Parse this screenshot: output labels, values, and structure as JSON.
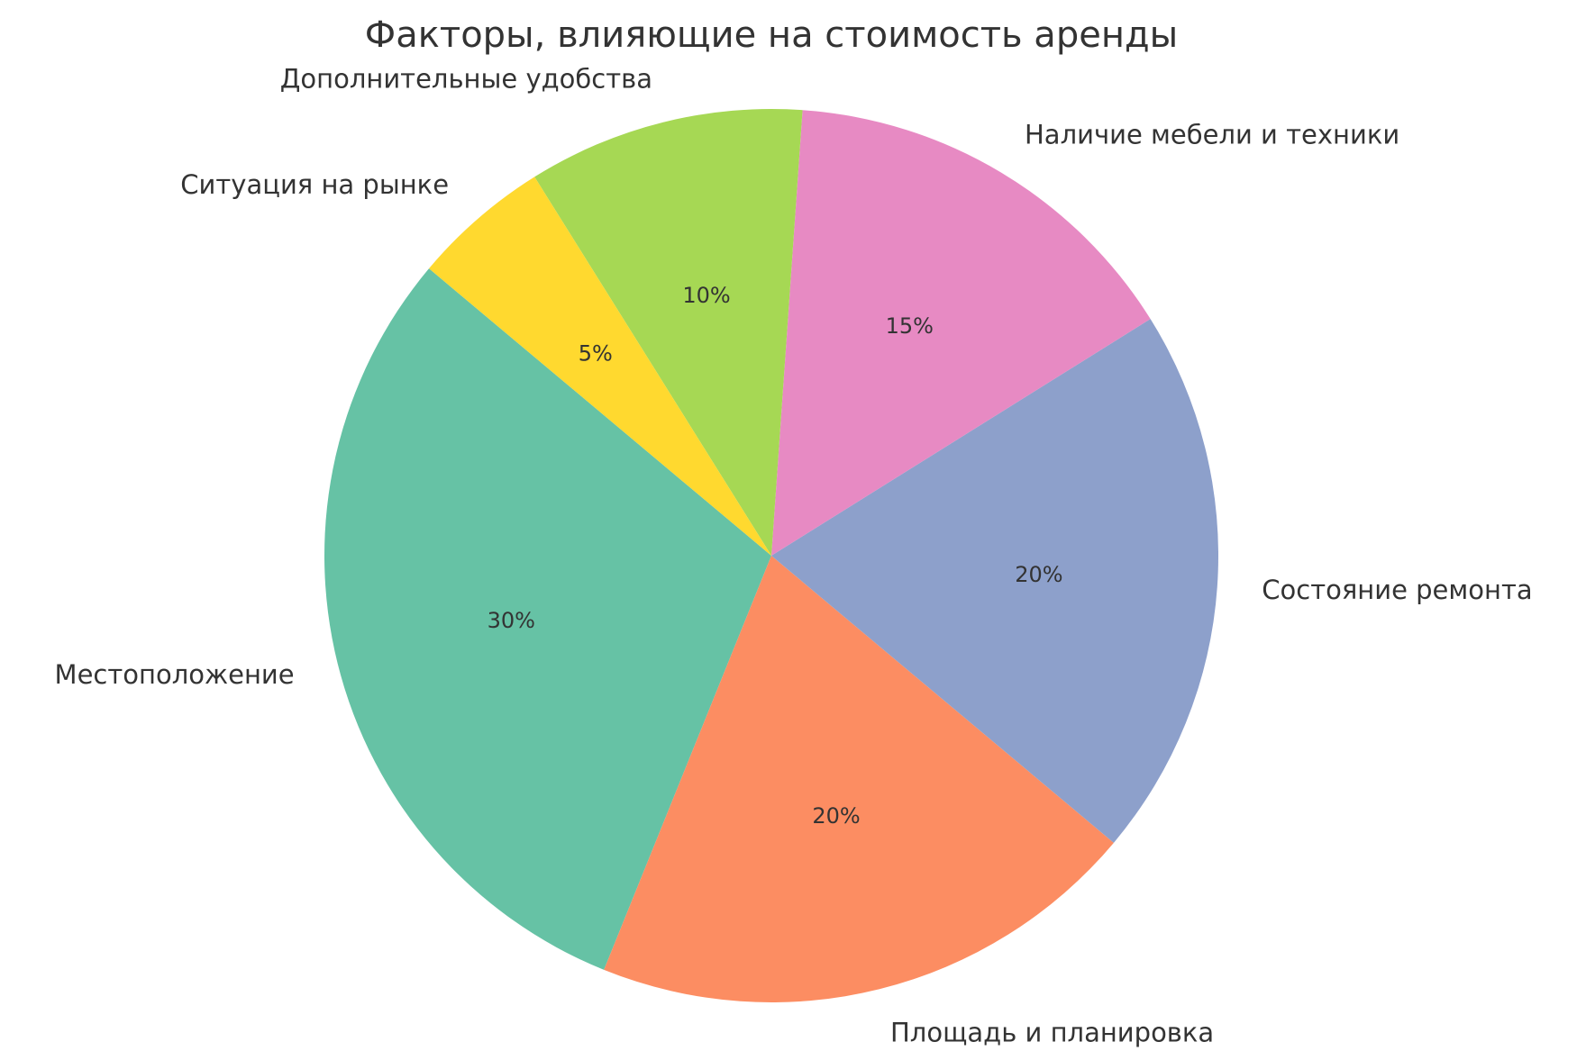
{
  "chart_data": {
    "type": "pie",
    "title": "Факторы, влияющие на стоимость аренды",
    "start_angle_deg": 140,
    "direction": "counterclockwise",
    "slices": [
      {
        "label": "Местоположение",
        "value": 30,
        "pct_label": "30%",
        "color": "#66c2a5"
      },
      {
        "label": "Площадь и планировка",
        "value": 20,
        "pct_label": "20%",
        "color": "#fc8d62"
      },
      {
        "label": "Состояние ремонта",
        "value": 20,
        "pct_label": "20%",
        "color": "#8da0cb"
      },
      {
        "label": "Наличие мебели и техники",
        "value": 15,
        "pct_label": "15%",
        "color": "#e78ac3"
      },
      {
        "label": "Дополнительные удобства",
        "value": 10,
        "pct_label": "10%",
        "color": "#a6d854"
      },
      {
        "label": "Ситуация на рынке",
        "value": 5,
        "pct_label": "5%",
        "color": "#ffd92f"
      }
    ]
  }
}
